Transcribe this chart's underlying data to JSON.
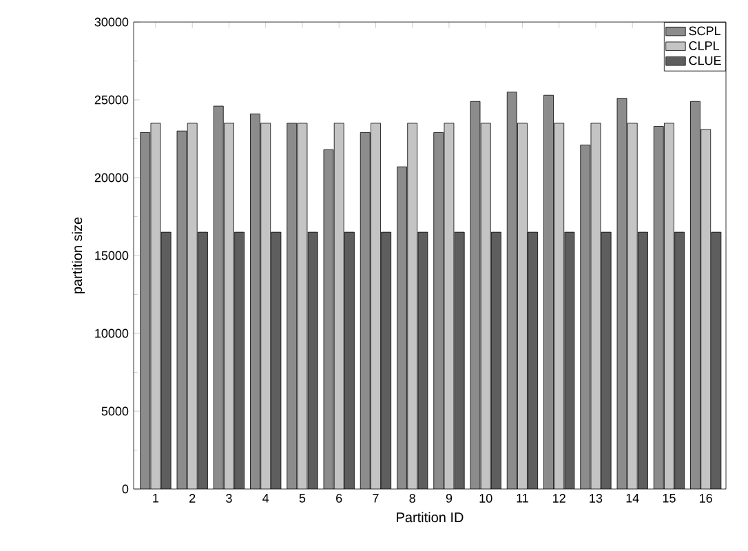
{
  "chart_data": {
    "type": "bar",
    "xlabel": "Partition ID",
    "ylabel": "partition size",
    "categories": [
      "1",
      "2",
      "3",
      "4",
      "5",
      "6",
      "7",
      "8",
      "9",
      "10",
      "11",
      "12",
      "13",
      "14",
      "15",
      "16"
    ],
    "series": [
      {
        "name": "SCPL",
        "color": "#8c8c8c",
        "values": [
          22900,
          23000,
          24600,
          24100,
          23500,
          21800,
          22900,
          20700,
          22900,
          24900,
          25500,
          25300,
          22100,
          25100,
          23300,
          24900
        ]
      },
      {
        "name": "CLPL",
        "color": "#c4c4c4",
        "values": [
          23500,
          23500,
          23500,
          23500,
          23500,
          23500,
          23500,
          23500,
          23500,
          23500,
          23500,
          23500,
          23500,
          23500,
          23500,
          23100
        ]
      },
      {
        "name": "CLUE",
        "color": "#5e5e5e",
        "values": [
          16500,
          16500,
          16500,
          16500,
          16500,
          16500,
          16500,
          16500,
          16500,
          16500,
          16500,
          16500,
          16500,
          16500,
          16500,
          16500
        ]
      }
    ],
    "ylim": [
      0,
      30000
    ],
    "yticks": [
      0,
      5000,
      10000,
      15000,
      20000,
      25000,
      30000
    ],
    "legend": "top right",
    "grid": false
  }
}
